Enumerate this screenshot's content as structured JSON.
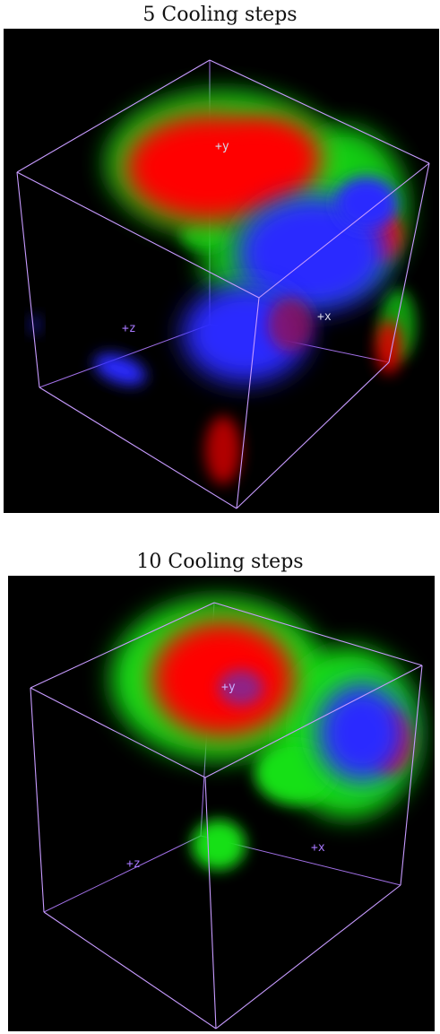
{
  "panels": [
    {
      "title": "5 Cooling steps",
      "axes": {
        "y": "+y",
        "x": "+x",
        "z": "+z"
      }
    },
    {
      "title": "10 Cooling steps",
      "axes": {
        "y": "+y",
        "x": "+x",
        "z": "+z"
      }
    }
  ],
  "colors": {
    "background": "#000000",
    "cube_edge": "#b27cff",
    "red_blob": "#ff0000",
    "green_blob": "#16e016",
    "blue_blob": "#2b2bff",
    "label_purple": "#a878ff",
    "label_white": "#d8d8e8"
  }
}
